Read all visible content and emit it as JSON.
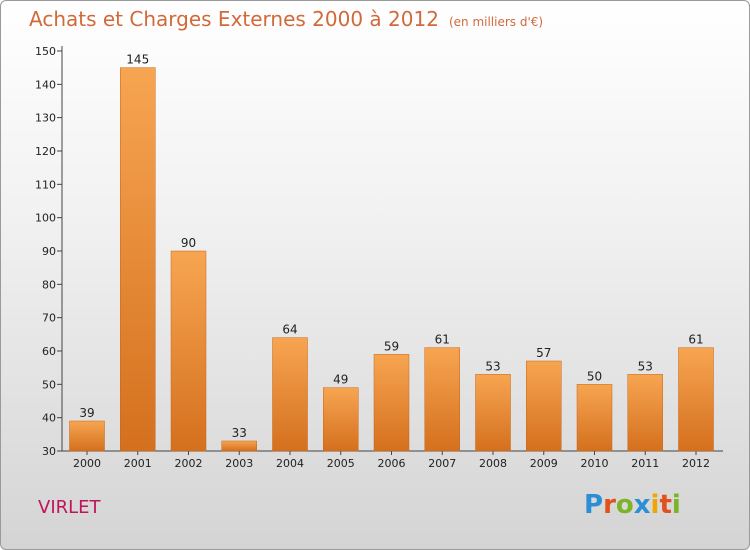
{
  "chart_data": {
    "type": "bar",
    "title": "Achats et Charges Externes 2000 à 2012",
    "subtitle": "(en milliers d'€)",
    "categories": [
      "2000",
      "2001",
      "2002",
      "2003",
      "2004",
      "2005",
      "2006",
      "2007",
      "2008",
      "2009",
      "2010",
      "2011",
      "2012"
    ],
    "values": [
      39,
      145,
      90,
      33,
      64,
      49,
      59,
      61,
      53,
      57,
      50,
      53,
      61
    ],
    "ylim": [
      30,
      150
    ],
    "yticks": [
      30,
      40,
      50,
      60,
      70,
      80,
      90,
      100,
      110,
      120,
      130,
      140,
      150
    ],
    "grid": false,
    "bar_color": "#e8832e"
  },
  "footer": {
    "town": "VIRLET",
    "logo": [
      "P",
      "r",
      "o",
      "x",
      "i",
      "t",
      "i"
    ]
  }
}
